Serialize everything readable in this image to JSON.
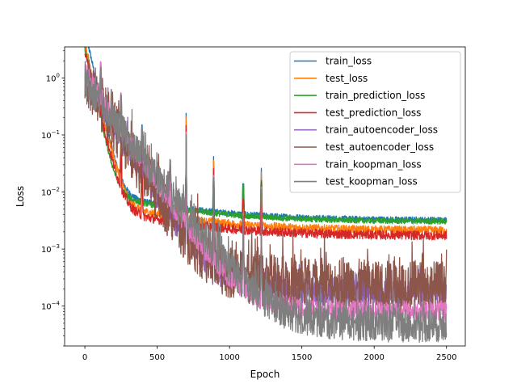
{
  "chart_data": {
    "type": "line",
    "title": "",
    "xlabel": "Epoch",
    "ylabel": "Loss",
    "xlim": [
      -140,
      2630
    ],
    "ylim": [
      2e-05,
      3.5
    ],
    "yscale": "log",
    "grid": false,
    "legend_placement": "top-right",
    "x_ticks": [
      {
        "value": 0,
        "label": "0"
      },
      {
        "value": 500,
        "label": "500"
      },
      {
        "value": 1000,
        "label": "1000"
      },
      {
        "value": 1500,
        "label": "1500"
      },
      {
        "value": 2000,
        "label": "2000"
      },
      {
        "value": 2500,
        "label": "2500"
      }
    ],
    "y_ticks": [
      {
        "value": 0.0001,
        "label": "10",
        "exp": "−4"
      },
      {
        "value": 0.001,
        "label": "10",
        "exp": "−3"
      },
      {
        "value": 0.01,
        "label": "10",
        "exp": "−2"
      },
      {
        "value": 0.1,
        "label": "10",
        "exp": "−1"
      },
      {
        "value": 1,
        "label": "10",
        "exp": "0"
      }
    ],
    "series": [
      {
        "name": "train_loss",
        "color": "#1f77b4",
        "start": 2.0,
        "floor": 0.0032,
        "knee": 40,
        "noise": 0.05,
        "spike_scale": 1.0
      },
      {
        "name": "test_loss",
        "color": "#ff7f0e",
        "start": 1.1,
        "floor": 0.0021,
        "knee": 45,
        "noise": 0.07,
        "spike_scale": 1.2
      },
      {
        "name": "train_prediction_loss",
        "color": "#2ca02c",
        "start": 0.9,
        "floor": 0.003,
        "knee": 40,
        "noise": 0.05,
        "spike_scale": 0.9
      },
      {
        "name": "test_prediction_loss",
        "color": "#d62728",
        "start": 0.8,
        "floor": 0.0017,
        "knee": 45,
        "noise": 0.08,
        "spike_scale": 1.0
      },
      {
        "name": "train_autoencoder_loss",
        "color": "#9467bd",
        "start": 0.3,
        "floor": 0.00016,
        "knee": 120,
        "noise": 0.25,
        "spike_scale": 1.0
      },
      {
        "name": "test_autoencoder_loss",
        "color": "#8c564b",
        "start": 0.28,
        "floor": 0.00022,
        "knee": 120,
        "noise": 0.45,
        "spike_scale": 1.0
      },
      {
        "name": "train_koopman_loss",
        "color": "#e377c2",
        "start": 0.35,
        "floor": 8e-05,
        "knee": 130,
        "noise": 0.18,
        "spike_scale": 1.0
      },
      {
        "name": "test_koopman_loss",
        "color": "#7f7f7f",
        "start": 0.25,
        "floor": 4.5e-05,
        "knee": 150,
        "noise": 0.3,
        "spike_scale": 1.0
      }
    ],
    "spikes": [
      {
        "epoch": 110,
        "peak": 0.35
      },
      {
        "epoch": 250,
        "peak": 0.038
      },
      {
        "epoch": 395,
        "peak": 0.15
      },
      {
        "epoch": 590,
        "peak": 0.0075
      },
      {
        "epoch": 700,
        "peak": 0.24
      },
      {
        "epoch": 890,
        "peak": 0.042
      },
      {
        "epoch": 1095,
        "peak": 0.009
      },
      {
        "epoch": 1220,
        "peak": 0.026
      }
    ]
  }
}
